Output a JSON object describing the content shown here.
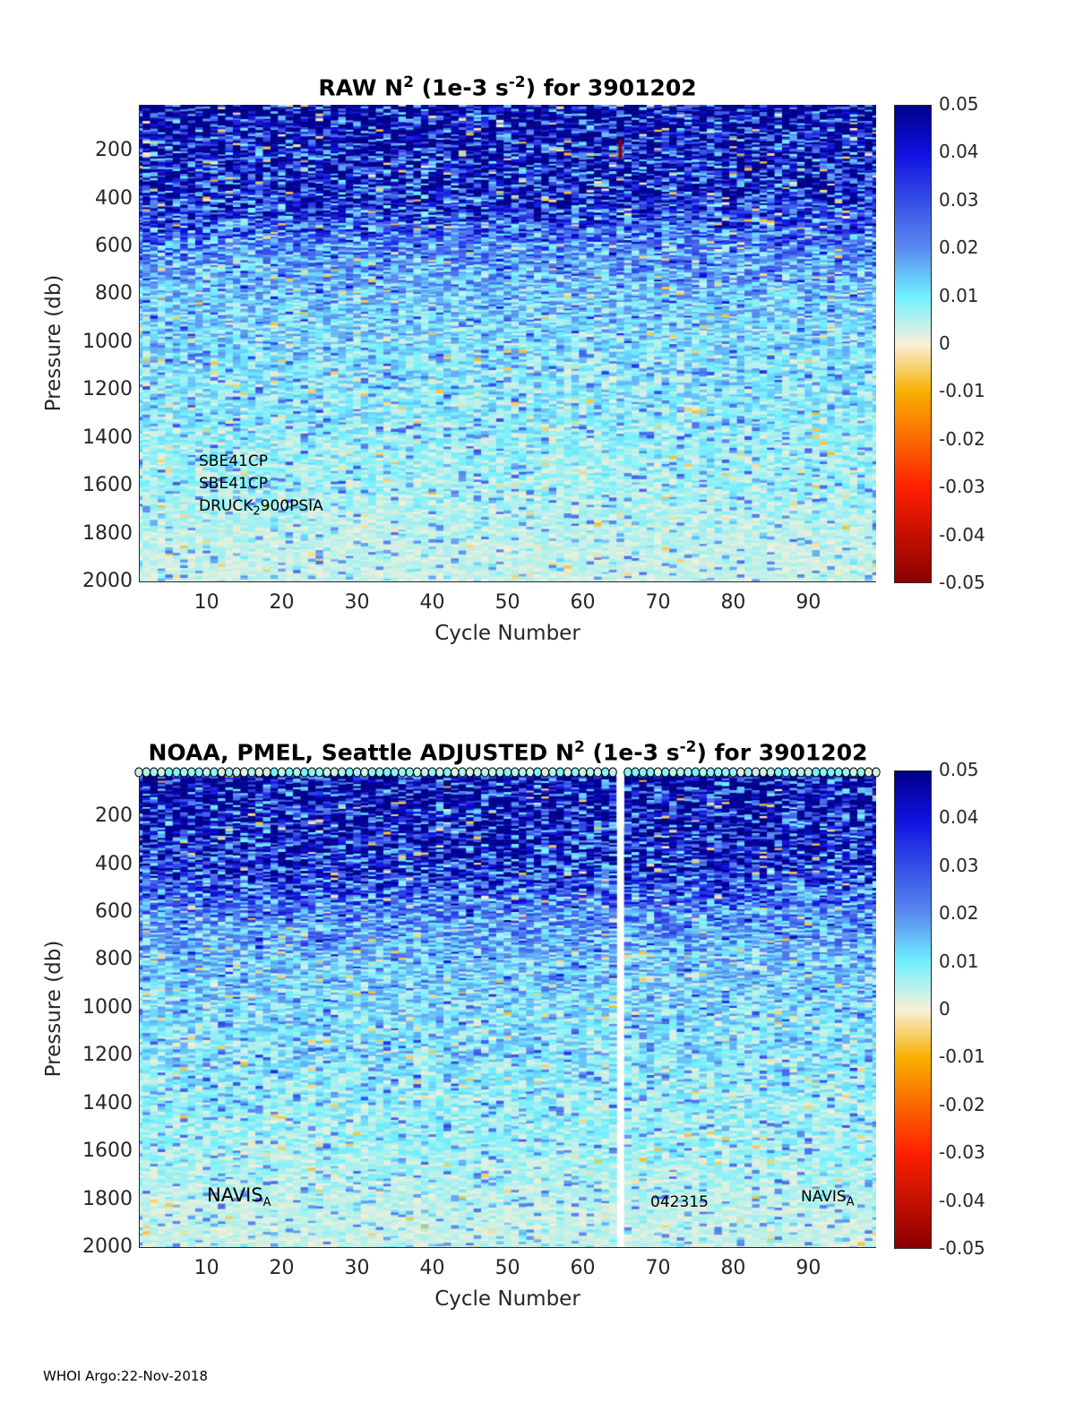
{
  "chart_data": [
    {
      "type": "heatmap",
      "title_prefix": "RAW N",
      "title_sup": "2",
      "title_mid": " (1e-3 s",
      "title_sup2": "-2",
      "title_suffix": ") for 3901202",
      "xlabel": "Cycle Number",
      "ylabel": "Pressure (db)",
      "xlim": [
        1,
        99
      ],
      "ylim": [
        5,
        2000
      ],
      "xticks": [
        "10",
        "20",
        "30",
        "40",
        "50",
        "60",
        "70",
        "80",
        "90"
      ],
      "yticks": [
        "200",
        "400",
        "600",
        "800",
        "1000",
        "1200",
        "1400",
        "1600",
        "1800",
        "2000"
      ],
      "clim": [
        -0.05,
        0.05
      ],
      "cbar_ticks": [
        "0.05",
        "0.04",
        "0.03",
        "0.02",
        "0.01",
        "0",
        "-0.01",
        "-0.02",
        "-0.03",
        "-0.04",
        "-0.05"
      ],
      "mean_profile": {
        "pressure": [
          5,
          100,
          200,
          300,
          400,
          600,
          800,
          1000,
          1200,
          1400,
          1600,
          1800,
          2000
        ],
        "n2": [
          0.05,
          0.048,
          0.04,
          0.04,
          0.035,
          0.02,
          0.013,
          0.01,
          0.009,
          0.007,
          0.006,
          0.004,
          0.003
        ]
      },
      "missing_cycles": [],
      "annotations": {
        "sensor1": "SBE41CP",
        "sensor2": "SBE41CP",
        "pressure_sensor_a": "DRUCK",
        "pressure_sensor_sub": "2",
        "pressure_sensor_b": "900PSIA"
      }
    },
    {
      "type": "heatmap",
      "title_prefix": "NOAA, PMEL, Seattle  ADJUSTED N",
      "title_sup": "2",
      "title_mid": " (1e-3 s",
      "title_sup2": "-2",
      "title_suffix": ") for 3901202",
      "xlabel": "Cycle Number",
      "ylabel": "Pressure (db)",
      "xlim": [
        1,
        99
      ],
      "ylim": [
        5,
        2000
      ],
      "xticks": [
        "10",
        "20",
        "30",
        "40",
        "50",
        "60",
        "70",
        "80",
        "90"
      ],
      "yticks": [
        "200",
        "400",
        "600",
        "800",
        "1000",
        "1200",
        "1400",
        "1600",
        "1800",
        "2000"
      ],
      "clim": [
        -0.05,
        0.05
      ],
      "cbar_ticks": [
        "0.05",
        "0.04",
        "0.03",
        "0.02",
        "0.01",
        "0",
        "-0.01",
        "-0.02",
        "-0.03",
        "-0.04",
        "-0.05"
      ],
      "mean_profile": {
        "pressure": [
          5,
          100,
          200,
          300,
          400,
          600,
          800,
          1000,
          1200,
          1400,
          1600,
          1800,
          2000
        ],
        "n2": [
          0.05,
          0.048,
          0.04,
          0.04,
          0.035,
          0.02,
          0.013,
          0.01,
          0.009,
          0.007,
          0.006,
          0.004,
          0.003
        ]
      },
      "missing_cycles": [
        65
      ],
      "annotations": {
        "float_type_left": "NAVIS",
        "float_type_left_sub": "A",
        "serial": "042315",
        "float_type_right": "NAVIS",
        "float_type_right_sub": "A"
      }
    }
  ],
  "colors": {
    "c005": "#00008a",
    "c004": "#1010e0",
    "c002": "#5a8cf0",
    "c001": "#70f0ff",
    "c000": "#f8f0d8",
    "cm001": "#f8b000",
    "cm003": "#ff2000",
    "cm005": "#8a0000"
  },
  "footer": "WHOI Argo:22-Nov-2018"
}
